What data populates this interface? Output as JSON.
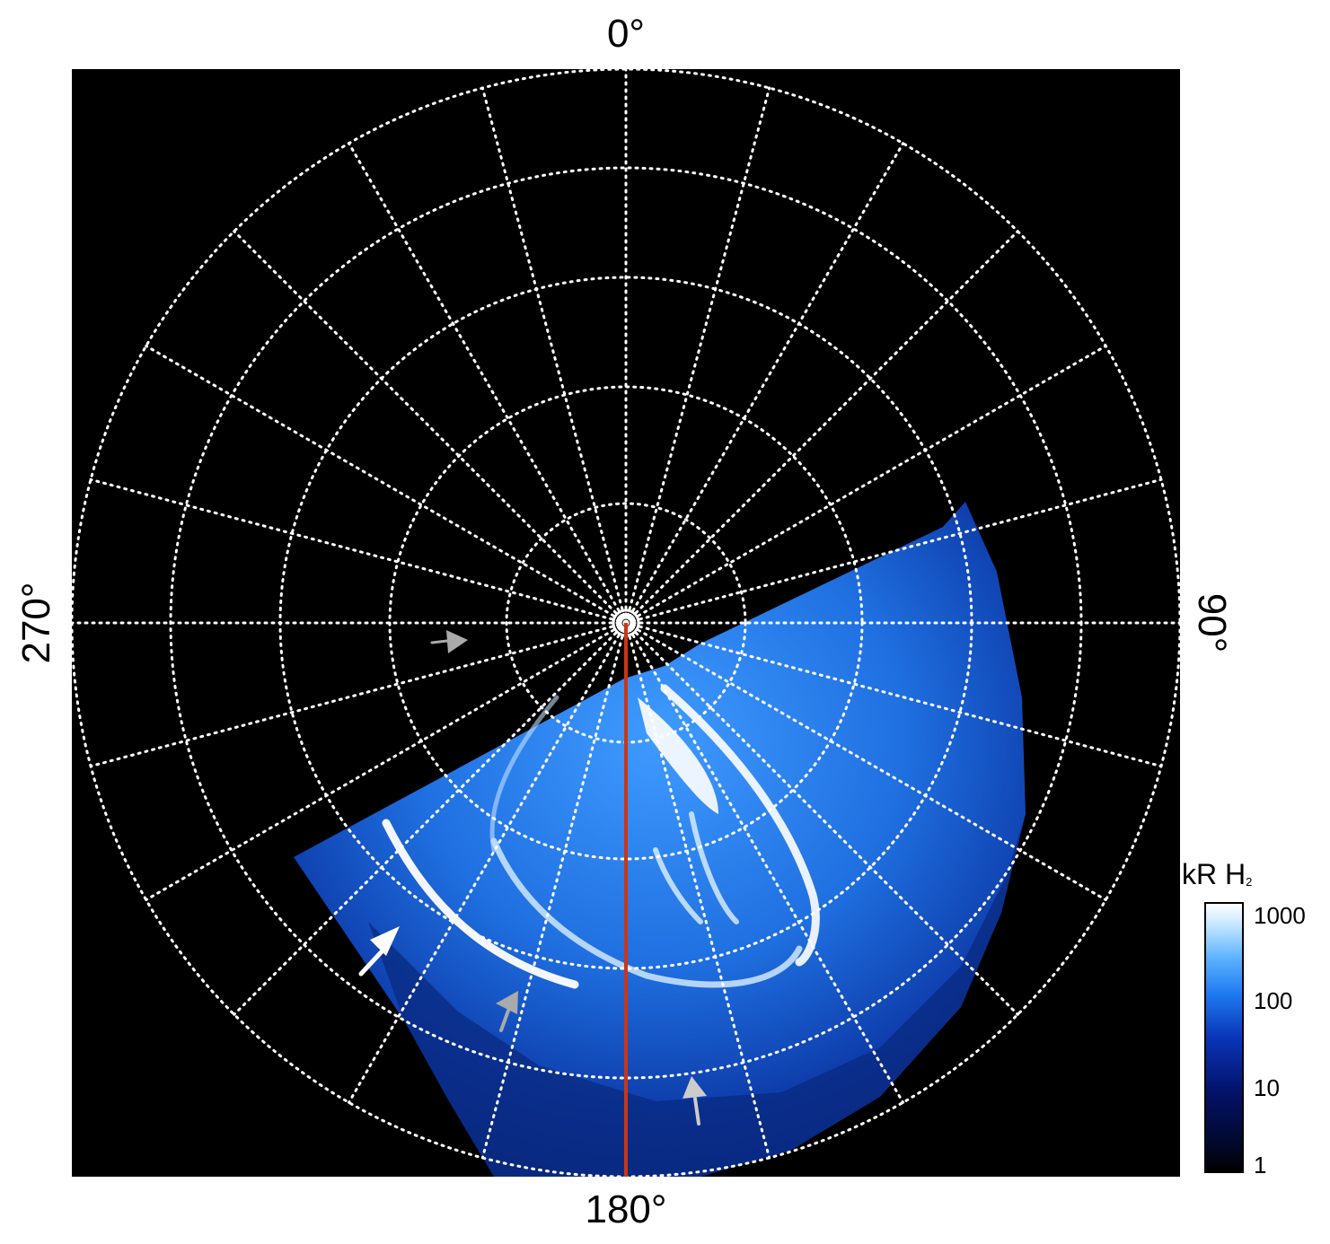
{
  "labels": {
    "top": "0°",
    "bottom": "180°",
    "left": "270°",
    "right": "90°"
  },
  "colorbar": {
    "title": "kR H",
    "title_sub": "2",
    "ticks": [
      "1000",
      "100",
      "10",
      "1"
    ]
  },
  "colors": {
    "background": "#000000",
    "grid": "#ffffff",
    "meridian_line": "#c8361a",
    "aurora_bright": "#ffffff",
    "aurora_mid": "#1e78f0",
    "aurora_dark": "#04126a",
    "arrow_white": "#ffffff",
    "arrow_grey": "#aaaaaa"
  },
  "annotations": {
    "arrows": [
      "white-arrow",
      "grey-arrow",
      "grey-arrow",
      "grey-arrow"
    ]
  }
}
